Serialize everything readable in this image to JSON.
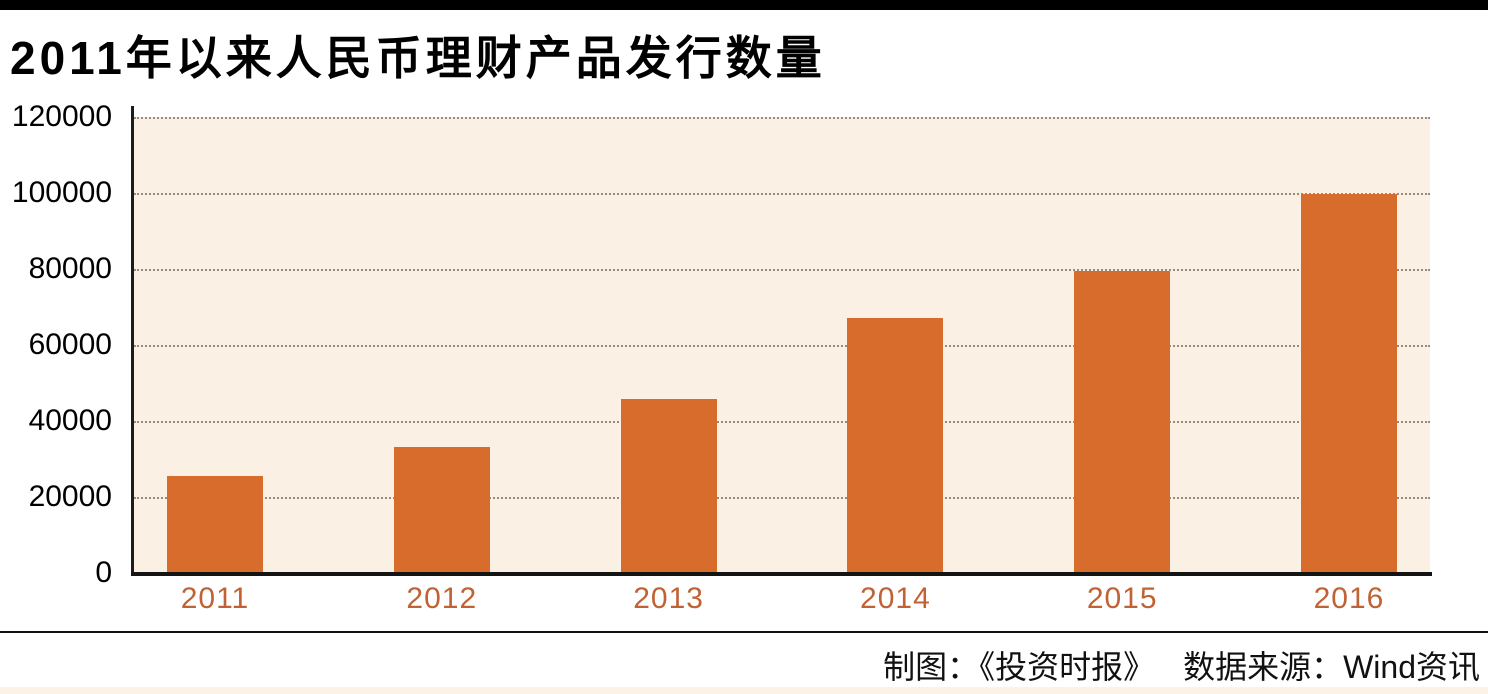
{
  "chart_data": {
    "type": "bar",
    "title": "2011年以来人民币理财产品发行数量",
    "categories": [
      "2011",
      "2012",
      "2013",
      "2014",
      "2015",
      "2016"
    ],
    "values": [
      25400,
      33100,
      45700,
      67200,
      79400,
      99700
    ],
    "xlabel": "",
    "ylabel": "",
    "ylim": [
      0,
      120000
    ],
    "yticks": [
      120000,
      100000,
      80000,
      60000,
      40000,
      20000,
      0
    ],
    "grid": "horizontal-dotted",
    "legend": "none",
    "bar_color": "#D76C2C",
    "plot_bg_color": "#FAF0E4",
    "xtick_color": "#C06233",
    "ytick_color": "#000000",
    "axis_color": "#1c1c1c"
  },
  "footer": {
    "credit": "制图：《投资时报》",
    "source": "数据来源：Wind资讯"
  }
}
